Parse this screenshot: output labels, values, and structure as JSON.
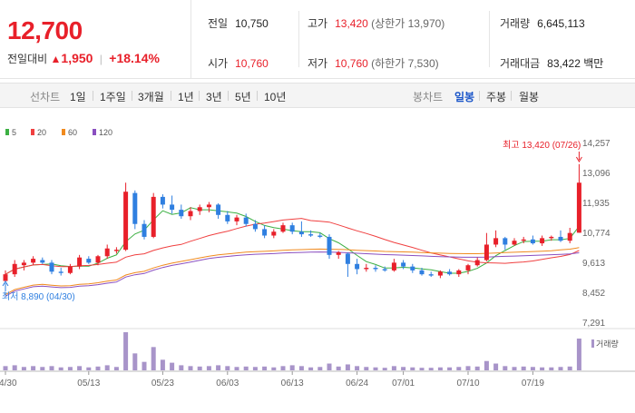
{
  "header": {
    "price": "12,700",
    "change_label": "전일대비",
    "change_arrow": "▲",
    "change_value": "1,950",
    "change_pct": "+18.14%"
  },
  "stats": {
    "prev_label": "전일",
    "prev_value": "10,750",
    "high_label": "고가",
    "high_value": "13,420",
    "high_sub": "(상한가 13,970)",
    "volume_label": "거래량",
    "volume_value": "6,645,113",
    "open_label": "시가",
    "open_value": "10,760",
    "low_label": "저가",
    "low_value": "10,760",
    "low_sub": "(하한가 7,530)",
    "amount_label": "거래대금",
    "amount_value": "83,422",
    "amount_unit": "백만"
  },
  "toolbar": {
    "line_title": "선차트",
    "line_periods": [
      "1일",
      "1주일",
      "3개월",
      "1년",
      "3년",
      "5년",
      "10년"
    ],
    "candle_title": "봉차트",
    "candle_periods": [
      "일봉",
      "주봉",
      "월봉"
    ],
    "candle_active": "일봉"
  },
  "chart_data": {
    "type": "candlestick",
    "legend": [
      {
        "name": "5",
        "color": "#3cb043"
      },
      {
        "name": "20",
        "color": "#f04040"
      },
      {
        "name": "60",
        "color": "#f08a1e"
      },
      {
        "name": "120",
        "color": "#8a4fc0"
      }
    ],
    "volume_label": "거래량",
    "y_ticks": [
      "14,257",
      "13,096",
      "11,935",
      "10,774",
      "9,613",
      "8,452",
      "7,291"
    ],
    "ylim": [
      7291,
      14257
    ],
    "x_ticks": [
      {
        "i": 0,
        "label": "04/30"
      },
      {
        "i": 9,
        "label": "05/13"
      },
      {
        "i": 17,
        "label": "05/23"
      },
      {
        "i": 24,
        "label": "06/03"
      },
      {
        "i": 31,
        "label": "06/13"
      },
      {
        "i": 38,
        "label": "06/24"
      },
      {
        "i": 43,
        "label": "07/01"
      },
      {
        "i": 50,
        "label": "07/10"
      },
      {
        "i": 57,
        "label": "07/19"
      }
    ],
    "max_annotation": {
      "label": "최고",
      "value": "13,420",
      "date": "(07/26)",
      "i": 62
    },
    "min_annotation": {
      "label": "최저",
      "value": "8,890",
      "date": "(04/30)",
      "i": 0
    },
    "candles": [
      {
        "o": 8890,
        "h": 9300,
        "l": 8890,
        "c": 9150,
        "v": 10
      },
      {
        "o": 9150,
        "h": 9700,
        "l": 9050,
        "c": 9550,
        "v": 12
      },
      {
        "o": 9500,
        "h": 9700,
        "l": 9300,
        "c": 9600,
        "v": 8
      },
      {
        "o": 9600,
        "h": 9850,
        "l": 9500,
        "c": 9750,
        "v": 10
      },
      {
        "o": 9700,
        "h": 9800,
        "l": 9550,
        "c": 9600,
        "v": 8
      },
      {
        "o": 9600,
        "h": 9700,
        "l": 9150,
        "c": 9250,
        "v": 10
      },
      {
        "o": 9250,
        "h": 9400,
        "l": 9100,
        "c": 9200,
        "v": 7
      },
      {
        "o": 9200,
        "h": 9550,
        "l": 9150,
        "c": 9450,
        "v": 8
      },
      {
        "o": 9450,
        "h": 9900,
        "l": 9350,
        "c": 9800,
        "v": 10
      },
      {
        "o": 9750,
        "h": 9850,
        "l": 9550,
        "c": 9600,
        "v": 7
      },
      {
        "o": 9600,
        "h": 9900,
        "l": 9500,
        "c": 9850,
        "v": 9
      },
      {
        "o": 9850,
        "h": 10300,
        "l": 9750,
        "c": 10150,
        "v": 12
      },
      {
        "o": 10050,
        "h": 10200,
        "l": 9950,
        "c": 10100,
        "v": 8
      },
      {
        "o": 10100,
        "h": 12700,
        "l": 10050,
        "c": 12350,
        "v": 90
      },
      {
        "o": 12300,
        "h": 12400,
        "l": 10900,
        "c": 11100,
        "v": 40
      },
      {
        "o": 11100,
        "h": 11250,
        "l": 10500,
        "c": 10600,
        "v": 20
      },
      {
        "o": 10600,
        "h": 12300,
        "l": 10550,
        "c": 12150,
        "v": 55
      },
      {
        "o": 12150,
        "h": 12250,
        "l": 11700,
        "c": 11850,
        "v": 25
      },
      {
        "o": 11850,
        "h": 12200,
        "l": 11500,
        "c": 11650,
        "v": 18
      },
      {
        "o": 11650,
        "h": 11850,
        "l": 11300,
        "c": 11400,
        "v": 12
      },
      {
        "o": 11400,
        "h": 11750,
        "l": 11250,
        "c": 11600,
        "v": 10
      },
      {
        "o": 11600,
        "h": 11850,
        "l": 11450,
        "c": 11750,
        "v": 9
      },
      {
        "o": 11750,
        "h": 11950,
        "l": 11550,
        "c": 11850,
        "v": 10
      },
      {
        "o": 11850,
        "h": 11900,
        "l": 11300,
        "c": 11450,
        "v": 12
      },
      {
        "o": 11450,
        "h": 11600,
        "l": 11100,
        "c": 11200,
        "v": 10
      },
      {
        "o": 11200,
        "h": 11450,
        "l": 11050,
        "c": 11350,
        "v": 8
      },
      {
        "o": 11350,
        "h": 11500,
        "l": 11000,
        "c": 11100,
        "v": 9
      },
      {
        "o": 11100,
        "h": 11250,
        "l": 10800,
        "c": 10900,
        "v": 8
      },
      {
        "o": 10900,
        "h": 11050,
        "l": 10550,
        "c": 10650,
        "v": 9
      },
      {
        "o": 10650,
        "h": 10900,
        "l": 10550,
        "c": 10800,
        "v": 7
      },
      {
        "o": 10800,
        "h": 11150,
        "l": 10750,
        "c": 11050,
        "v": 10
      },
      {
        "o": 11050,
        "h": 11150,
        "l": 10700,
        "c": 10800,
        "v": 12
      },
      {
        "o": 10800,
        "h": 11200,
        "l": 10600,
        "c": 10700,
        "v": 10
      },
      {
        "o": 10700,
        "h": 10850,
        "l": 10600,
        "c": 10650,
        "v": 7
      },
      {
        "o": 10650,
        "h": 10750,
        "l": 10550,
        "c": 10600,
        "v": 8
      },
      {
        "o": 10600,
        "h": 10700,
        "l": 9750,
        "c": 9900,
        "v": 16
      },
      {
        "o": 9900,
        "h": 10050,
        "l": 9750,
        "c": 10000,
        "v": 9
      },
      {
        "o": 9950,
        "h": 10000,
        "l": 9050,
        "c": 9550,
        "v": 14
      },
      {
        "o": 9550,
        "h": 9750,
        "l": 9150,
        "c": 9350,
        "v": 10
      },
      {
        "o": 9350,
        "h": 9550,
        "l": 9250,
        "c": 9400,
        "v": 8
      },
      {
        "o": 9400,
        "h": 9500,
        "l": 9250,
        "c": 9350,
        "v": 7
      },
      {
        "o": 9350,
        "h": 9450,
        "l": 9250,
        "c": 9300,
        "v": 6
      },
      {
        "o": 9300,
        "h": 9750,
        "l": 9250,
        "c": 9600,
        "v": 10
      },
      {
        "o": 9600,
        "h": 9700,
        "l": 9350,
        "c": 9450,
        "v": 8
      },
      {
        "o": 9450,
        "h": 9550,
        "l": 9200,
        "c": 9300,
        "v": 7
      },
      {
        "o": 9300,
        "h": 9400,
        "l": 9100,
        "c": 9150,
        "v": 6
      },
      {
        "o": 9150,
        "h": 9250,
        "l": 9050,
        "c": 9100,
        "v": 6
      },
      {
        "o": 9100,
        "h": 9300,
        "l": 9000,
        "c": 9250,
        "v": 7
      },
      {
        "o": 9250,
        "h": 9350,
        "l": 9100,
        "c": 9150,
        "v": 7
      },
      {
        "o": 9150,
        "h": 9350,
        "l": 9050,
        "c": 9300,
        "v": 8
      },
      {
        "o": 9300,
        "h": 9550,
        "l": 9150,
        "c": 9500,
        "v": 10
      },
      {
        "o": 9500,
        "h": 9800,
        "l": 9450,
        "c": 9700,
        "v": 9
      },
      {
        "o": 9700,
        "h": 10750,
        "l": 9650,
        "c": 10300,
        "v": 22
      },
      {
        "o": 10300,
        "h": 10850,
        "l": 10200,
        "c": 10550,
        "v": 16
      },
      {
        "o": 10550,
        "h": 10600,
        "l": 10100,
        "c": 10300,
        "v": 10
      },
      {
        "o": 10300,
        "h": 10550,
        "l": 10250,
        "c": 10450,
        "v": 8
      },
      {
        "o": 10450,
        "h": 10600,
        "l": 10350,
        "c": 10500,
        "v": 9
      },
      {
        "o": 10500,
        "h": 10650,
        "l": 10300,
        "c": 10350,
        "v": 8
      },
      {
        "o": 10350,
        "h": 10650,
        "l": 10250,
        "c": 10550,
        "v": 7
      },
      {
        "o": 10550,
        "h": 10650,
        "l": 10450,
        "c": 10600,
        "v": 7
      },
      {
        "o": 10600,
        "h": 10850,
        "l": 10400,
        "c": 10450,
        "v": 8
      },
      {
        "o": 10450,
        "h": 10950,
        "l": 10350,
        "c": 10750,
        "v": 9
      },
      {
        "o": 10760,
        "h": 13420,
        "l": 10760,
        "c": 12700,
        "v": 75
      }
    ]
  }
}
